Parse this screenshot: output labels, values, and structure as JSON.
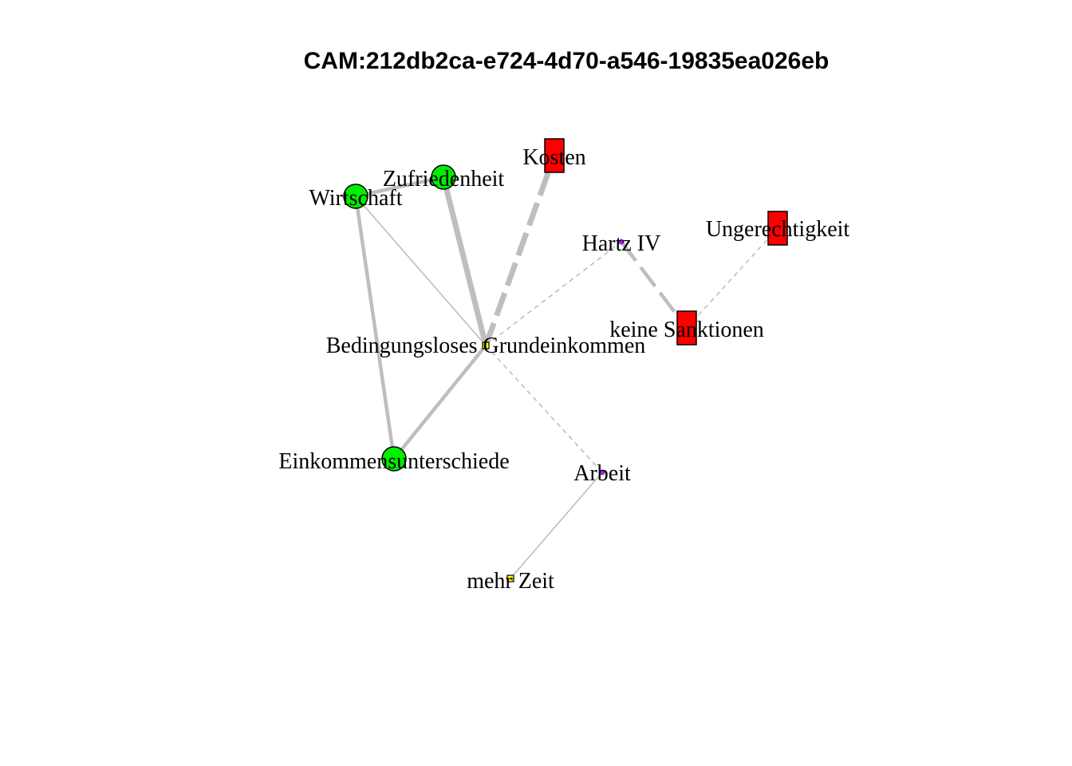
{
  "title": "CAM:212db2ca-e724-4d70-a546-19835ea026eb",
  "nodes": [
    {
      "id": "bge",
      "label": "Bedingungsloses Grundeinkommen",
      "shape": "square-small",
      "color": "#ffff00"
    },
    {
      "id": "wirtschaft",
      "label": "Wirtschaft",
      "shape": "circle",
      "color": "#00ee00"
    },
    {
      "id": "zufriedenheit",
      "label": "Zufriedenheit",
      "shape": "circle",
      "color": "#00ee00"
    },
    {
      "id": "kosten",
      "label": "Kosten",
      "shape": "rect",
      "color": "#ff0000"
    },
    {
      "id": "hartz",
      "label": "Hartz IV",
      "shape": "dot",
      "color": "#a020f0"
    },
    {
      "id": "ungerechtigkeit",
      "label": "Ungerechtigkeit",
      "shape": "rect",
      "color": "#ff0000"
    },
    {
      "id": "sanktionen",
      "label": "keine Sanktionen",
      "shape": "rect",
      "color": "#ff0000"
    },
    {
      "id": "einkommen",
      "label": "Einkommensunterschiede",
      "shape": "circle",
      "color": "#00ee00"
    },
    {
      "id": "arbeit",
      "label": "Arbeit",
      "shape": "dot",
      "color": "#a020f0"
    },
    {
      "id": "zeit",
      "label": "mehr Zeit",
      "shape": "square-small",
      "color": "#ffff00"
    }
  ],
  "edges": [
    {
      "from": "bge",
      "to": "zufriedenheit",
      "style": "solid",
      "strength": 3
    },
    {
      "from": "bge",
      "to": "kosten",
      "style": "dashed",
      "strength": 3
    },
    {
      "from": "bge",
      "to": "wirtschaft",
      "style": "solid",
      "strength": 1
    },
    {
      "from": "bge",
      "to": "hartz",
      "style": "dashed",
      "strength": 1
    },
    {
      "from": "bge",
      "to": "einkommen",
      "style": "solid",
      "strength": 2
    },
    {
      "from": "bge",
      "to": "arbeit",
      "style": "dashed",
      "strength": 1
    },
    {
      "from": "wirtschaft",
      "to": "einkommen",
      "style": "solid",
      "strength": 2
    },
    {
      "from": "wirtschaft",
      "to": "zufriedenheit",
      "style": "solid",
      "strength": 2
    },
    {
      "from": "hartz",
      "to": "sanktionen",
      "style": "dashed",
      "strength": 2
    },
    {
      "from": "sanktionen",
      "to": "ungerechtigkeit",
      "style": "dashed",
      "strength": 1
    },
    {
      "from": "arbeit",
      "to": "zeit",
      "style": "solid",
      "strength": 1
    }
  ]
}
